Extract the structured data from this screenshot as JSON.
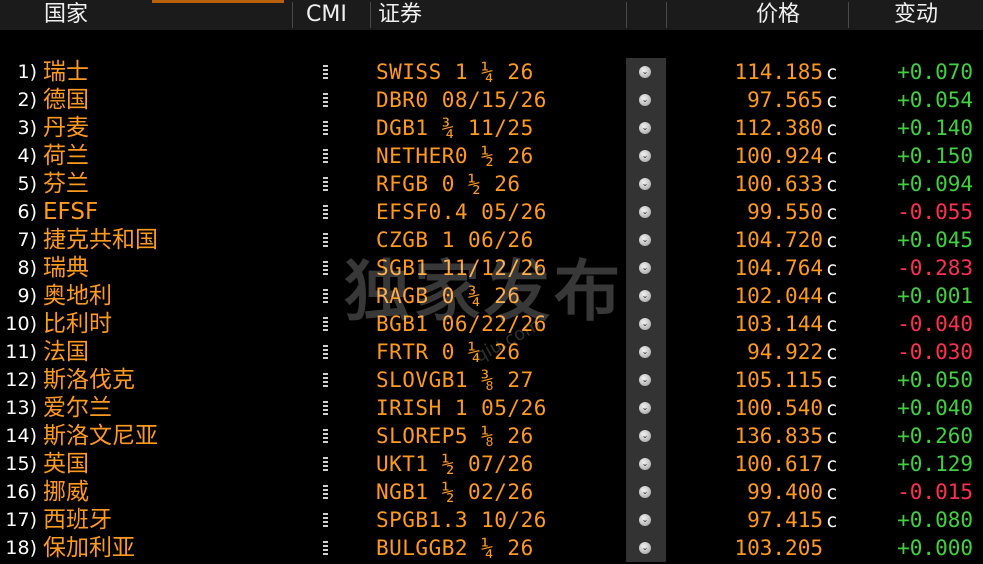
{
  "header": {
    "country": "国家",
    "cmi": "CMI",
    "security": "证券",
    "price": "价格",
    "change": "变动"
  },
  "rows": [
    {
      "idx": "1)",
      "country": "瑞士",
      "security": "SWISS 1 ¼ 26",
      "price": "114.185",
      "flag": "c",
      "change": "+0.070",
      "dir": "up"
    },
    {
      "idx": "2)",
      "country": "德国",
      "security": "DBR0 08/15/26",
      "price": "97.565",
      "flag": "c",
      "change": "+0.054",
      "dir": "up"
    },
    {
      "idx": "3)",
      "country": "丹麦",
      "security": "DGB1 ¾ 11/25",
      "price": "112.380",
      "flag": "c",
      "change": "+0.140",
      "dir": "up"
    },
    {
      "idx": "4)",
      "country": "荷兰",
      "security": "NETHER0 ½ 26",
      "price": "100.924",
      "flag": "c",
      "change": "+0.150",
      "dir": "up"
    },
    {
      "idx": "5)",
      "country": "芬兰",
      "security": "RFGB 0 ½ 26",
      "price": "100.633",
      "flag": "c",
      "change": "+0.094",
      "dir": "up"
    },
    {
      "idx": "6)",
      "country": "EFSF",
      "security": "EFSF0.4 05/26",
      "price": "99.550",
      "flag": "c",
      "change": "-0.055",
      "dir": "down"
    },
    {
      "idx": "7)",
      "country": "捷克共和国",
      "security": "CZGB 1 06/26",
      "price": "104.720",
      "flag": "c",
      "change": "+0.045",
      "dir": "up"
    },
    {
      "idx": "8)",
      "country": "瑞典",
      "security": "SGB1 11/12/26",
      "price": "104.764",
      "flag": "c",
      "change": "-0.283",
      "dir": "down"
    },
    {
      "idx": "9)",
      "country": "奥地利",
      "security": "RAGB 0 ¾ 26",
      "price": "102.044",
      "flag": "c",
      "change": "+0.001",
      "dir": "up"
    },
    {
      "idx": "10)",
      "country": "比利时",
      "security": "BGB1 06/22/26",
      "price": "103.144",
      "flag": "c",
      "change": "-0.040",
      "dir": "down"
    },
    {
      "idx": "11)",
      "country": "法国",
      "security": "FRTR 0 ¼ 26",
      "price": "94.922",
      "flag": "c",
      "change": "-0.030",
      "dir": "down"
    },
    {
      "idx": "12)",
      "country": "斯洛伐克",
      "security": "SLOVGB1 ⅜ 27",
      "price": "105.115",
      "flag": "c",
      "change": "+0.050",
      "dir": "up"
    },
    {
      "idx": "13)",
      "country": "爱尔兰",
      "security": "IRISH 1 05/26",
      "price": "100.540",
      "flag": "c",
      "change": "+0.040",
      "dir": "up"
    },
    {
      "idx": "14)",
      "country": "斯洛文尼亚",
      "security": "SLOREP5 ⅛ 26",
      "price": "136.835",
      "flag": "c",
      "change": "+0.260",
      "dir": "up"
    },
    {
      "idx": "15)",
      "country": "英国",
      "security": "UKT1 ½ 07/26",
      "price": "100.617",
      "flag": "c",
      "change": "+0.129",
      "dir": "up"
    },
    {
      "idx": "16)",
      "country": "挪威",
      "security": "NGB1 ½ 02/26",
      "price": "99.400",
      "flag": "c",
      "change": "-0.015",
      "dir": "down"
    },
    {
      "idx": "17)",
      "country": "西班牙",
      "security": "SPGB1.3 10/26",
      "price": "97.415",
      "flag": "c",
      "change": "+0.080",
      "dir": "up"
    },
    {
      "idx": "18)",
      "country": "保加利亚",
      "security": "BULGGB2 ¼ 26",
      "price": "103.205",
      "flag": "",
      "change": "+0.000",
      "dir": "up"
    }
  ],
  "watermark": "独家发布",
  "watermark_sub": "qiu.com"
}
